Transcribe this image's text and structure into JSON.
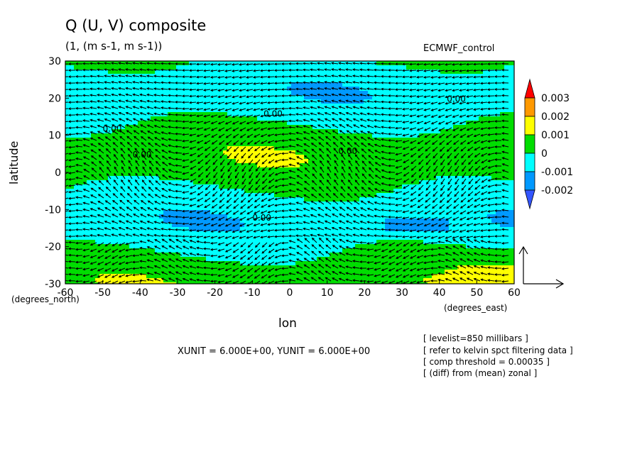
{
  "chart_data": {
    "type": "heatmap",
    "title": "Q (U, V) composite",
    "subtitle": "(1, (m s-1, m s-1))",
    "dataset_label": "ECMWF_control",
    "xlabel": "lon",
    "ylabel": "latitude",
    "x_units": "(degrees_east)",
    "y_units": "(degrees_north)",
    "xlim": [
      -60,
      60
    ],
    "ylim": [
      -30,
      30
    ],
    "x_ticks": [
      -60,
      -50,
      -40,
      -30,
      -20,
      -10,
      0,
      10,
      20,
      30,
      40,
      50,
      60
    ],
    "x_tick_labels": [
      "-60",
      "-50",
      "-40",
      "-30",
      "-20",
      "-10",
      "0",
      "10",
      "20",
      "30",
      "40",
      "50",
      "60"
    ],
    "y_ticks": [
      -30,
      -20,
      -10,
      0,
      10,
      20,
      30
    ],
    "y_tick_labels": [
      "-30",
      "-20",
      "-10",
      "0",
      "10",
      "20",
      "30"
    ],
    "colorbar": {
      "levels": [
        "0.003",
        "0.002",
        "0.001",
        "0",
        "-0.001",
        "-0.002"
      ],
      "colors": [
        "#ff0000",
        "#ff9900",
        "#ffff00",
        "#00dd00",
        "#00ffff",
        "#0099ff",
        "#3355ff"
      ]
    },
    "contour_labels": [
      "0.00",
      "0.00",
      "0.00",
      "0.00",
      "0.00",
      "0.00"
    ],
    "vector_unit_text": "XUNIT = 6.000E+00, YUNIT = 6.000E+00",
    "notes": [
      "[ levelist=850 millibars ]",
      "[ refer to kelvin spct filtering data ]",
      "[ comp threshold = 0.00035 ]",
      "[ (diff) from (mean) zonal ]"
    ]
  }
}
